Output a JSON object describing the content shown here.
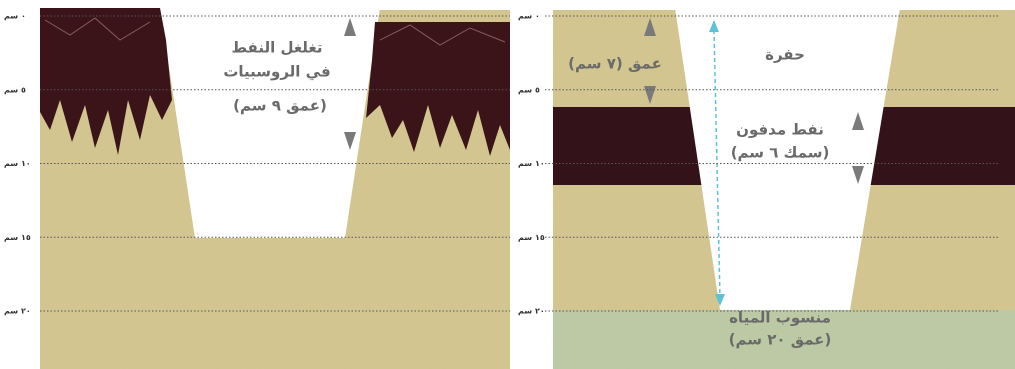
{
  "depth_scale": {
    "labels": [
      "٠ سم",
      "٥ سم",
      "١٠ سم",
      "١٥ سم",
      "٢٠ سم"
    ]
  },
  "left_panel": {
    "title_line1": "تغلغل النفط",
    "title_line2": "في الروسبيات",
    "depth_note": "(عمق ٩ سم)"
  },
  "right_panel": {
    "pit_label": "حفرة",
    "pit_depth": "عمق (٧ سم)",
    "buried_oil": "نفط مدفون",
    "buried_oil_thickness": "(سمك ٦ سم)",
    "water_table": "منسوب المياه",
    "water_depth": "(عمق ٢٠ سم)"
  }
}
